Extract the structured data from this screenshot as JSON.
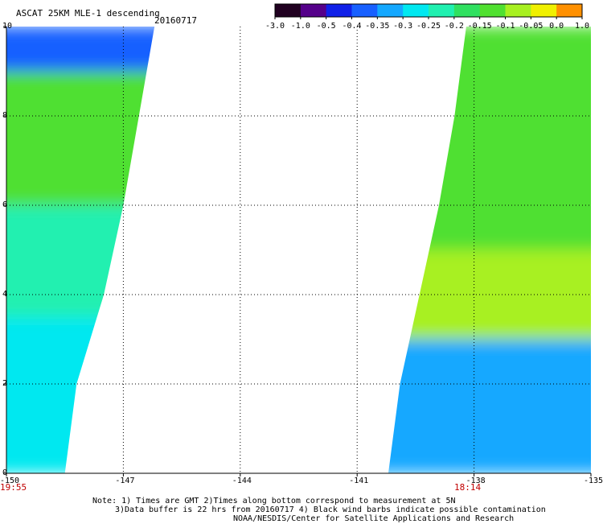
{
  "header": {
    "title": "ASCAT 25KM MLE-1 descending",
    "date": "20160717"
  },
  "colorbar": {
    "labels": [
      "-3.0",
      "-1.0",
      "-0.5",
      "-0.4",
      "-0.35",
      "-0.3",
      "-0.25",
      "-0.2",
      "-0.15",
      "-0.1",
      "-0.05",
      "0.0",
      "1.0"
    ],
    "colors": [
      "#200020",
      "#55008a",
      "#1020e8",
      "#1860ff",
      "#14a8ff",
      "#00e8f0",
      "#20f0b0",
      "#30e060",
      "#50e030",
      "#a8f020",
      "#f0f000",
      "#ff9000",
      "#ff2000"
    ]
  },
  "times": {
    "left": "19:55",
    "right": "18:14"
  },
  "notes": [
    "Note: 1) Times are GMT 2)Times along bottom correspond to measurement at 5N",
    "3)Data buffer is 22 hrs from 20160717 4) Black wind barbs indicate possible contamination",
    "NOAA/NESDIS/Center for Satellite Applications and Research"
  ],
  "chart_data": {
    "type": "heatmap",
    "title": "ASCAT 25KM MLE-1 descending",
    "xlabel": "",
    "ylabel": "",
    "xlim": [
      -150,
      -135
    ],
    "ylim": [
      0,
      10
    ],
    "x_ticks": [
      -150,
      -147,
      -144,
      -141,
      -138,
      -135
    ],
    "x_tick_labels": [
      "-150",
      "-147",
      "-144",
      "-141",
      "-138",
      "-135"
    ],
    "y_ticks": [
      0,
      2,
      4,
      6,
      8,
      10
    ],
    "y_tick_labels": [
      "0",
      "2",
      "4",
      "6",
      "8",
      "10"
    ],
    "grid": true,
    "left_swath": {
      "edge": [
        [
          0,
          -148.5
        ],
        [
          2,
          -148.2
        ],
        [
          4,
          -147.5
        ],
        [
          6,
          -147.0
        ],
        [
          8,
          -146.6
        ],
        [
          10,
          -146.2
        ]
      ],
      "regions": [
        {
          "lat": [
            9.0,
            10.0
          ],
          "value": -0.4
        },
        {
          "lat": [
            6.0,
            9.0
          ],
          "value": -0.18
        },
        {
          "lat": [
            3.5,
            6.0
          ],
          "value": -0.27
        },
        {
          "lat": [
            0.0,
            3.5
          ],
          "value": -0.3
        }
      ]
    },
    "right_swath": {
      "edge": [
        [
          0,
          -140.2
        ],
        [
          2,
          -139.9
        ],
        [
          4,
          -139.4
        ],
        [
          6,
          -138.9
        ],
        [
          8,
          -138.5
        ],
        [
          10,
          -138.2
        ]
      ],
      "regions": [
        {
          "lat": [
            5.0,
            10.0
          ],
          "value": -0.17
        },
        {
          "lat": [
            3.0,
            5.0
          ],
          "value": -0.13
        },
        {
          "lat": [
            0.0,
            3.0
          ],
          "value": -0.38
        }
      ]
    }
  }
}
